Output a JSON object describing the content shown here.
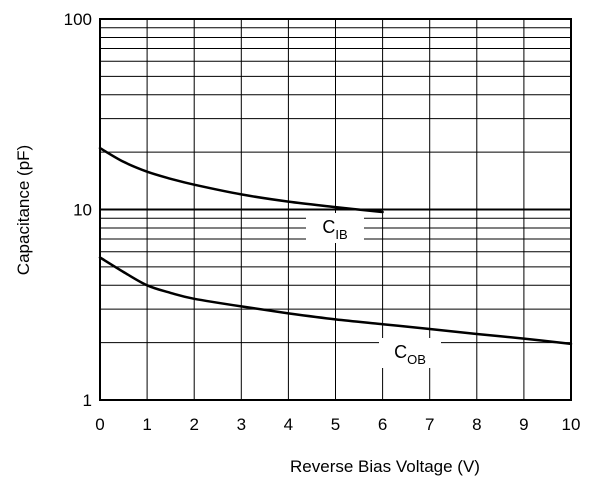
{
  "chart_data": {
    "type": "line",
    "xlabel": "Reverse Bias Voltage (V)",
    "ylabel": "Capacitance (pF)",
    "xlim": [
      0,
      10
    ],
    "ylim": [
      1,
      100
    ],
    "yscale": "log",
    "grid": true,
    "x_ticks": [
      "0",
      "1",
      "2",
      "3",
      "4",
      "5",
      "6",
      "7",
      "8",
      "9",
      "10"
    ],
    "y_ticks": [
      "1",
      "10",
      "100"
    ],
    "series": [
      {
        "name": "C",
        "subscript": "IB",
        "x": [
          0,
          0.5,
          1,
          1.5,
          2,
          3,
          4,
          5,
          6
        ],
        "y": [
          21,
          17.8,
          15.8,
          14.5,
          13.5,
          12,
          11,
          10.3,
          9.7
        ]
      },
      {
        "name": "C",
        "subscript": "OB",
        "x": [
          0,
          0.5,
          1,
          1.5,
          2,
          3,
          4,
          5,
          6,
          7,
          8,
          9,
          10
        ],
        "y": [
          5.6,
          4.7,
          4.0,
          3.65,
          3.4,
          3.1,
          2.85,
          2.65,
          2.5,
          2.36,
          2.22,
          2.1,
          1.97
        ]
      }
    ]
  }
}
